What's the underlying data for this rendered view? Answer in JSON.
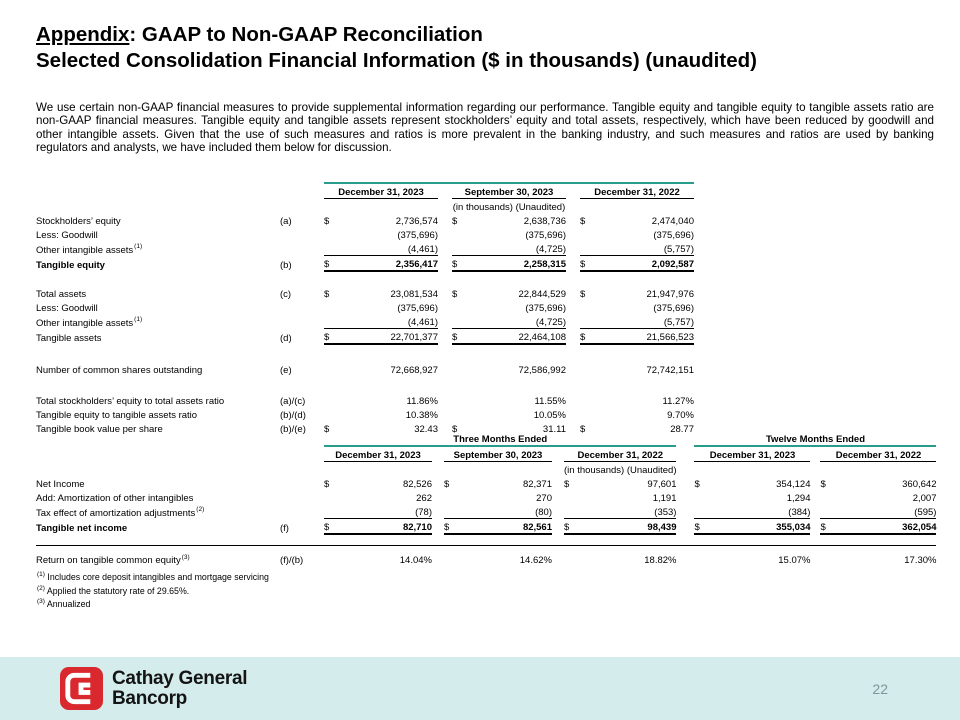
{
  "title": {
    "line1_prefix": "Appendix",
    "line1_rest": ": GAAP to Non-GAAP Reconciliation",
    "line2": "Selected Consolidation Financial Information ($ in thousands) (unaudited)"
  },
  "intro": "We use certain non-GAAP financial measures to provide supplemental information regarding our performance. Tangible equity and tangible equity to tangible assets ratio are non-GAAP financial measures. Tangible equity and tangible assets represent stockholders’ equity and total assets, respectively, which have been reduced by goodwill and other intangible assets. Given that the use of such measures and ratios is more prevalent in the banking industry, and such measures and ratios are used by banking regulators and analysts, we have included them below for discussion.",
  "table1": {
    "teal_top": true,
    "col_headers": [
      "December 31, 2023",
      "September 30, 2023",
      "December 31, 2022"
    ],
    "subheader": "(in thousands) (Unaudited)",
    "sub_group": 1,
    "rows": [
      {
        "label": "Stockholders’ equity",
        "ref": "(a)",
        "dollar": true,
        "values": [
          "2,736,574",
          "2,638,736",
          "2,474,040"
        ]
      },
      {
        "label": "Less: Goodwill",
        "values": [
          "(375,696)",
          "(375,696)",
          "(375,696)"
        ]
      },
      {
        "label": "Other intangible assets",
        "sup": "(1)",
        "underline": true,
        "values": [
          "(4,461)",
          "(4,725)",
          "(5,757)"
        ]
      },
      {
        "label": "Tangible equity",
        "ref": "(b)",
        "dollar": true,
        "bold": true,
        "total": true,
        "values": [
          "2,356,417",
          "2,258,315",
          "2,092,587"
        ]
      },
      {
        "spacer": true,
        "h": 14
      },
      {
        "label": "Total assets",
        "ref": "(c)",
        "dollar": true,
        "values": [
          "23,081,534",
          "22,844,529",
          "21,947,976"
        ]
      },
      {
        "label": "Less: Goodwill",
        "values": [
          "(375,696)",
          "(375,696)",
          "(375,696)"
        ]
      },
      {
        "label": "Other intangible assets",
        "sup": "(1)",
        "underline": true,
        "values": [
          "(4,461)",
          "(4,725)",
          "(5,757)"
        ]
      },
      {
        "label": "Tangible assets",
        "ref": "(d)",
        "dollar": true,
        "total": true,
        "values": [
          "22,701,377",
          "22,464,108",
          "21,566,523"
        ]
      },
      {
        "spacer": true,
        "h": 17
      },
      {
        "label": "Number of common shares outstanding",
        "ref": "(e)",
        "values": [
          "72,668,927",
          "72,586,992",
          "72,742,151"
        ]
      },
      {
        "spacer": true,
        "h": 17
      },
      {
        "label": "Total stockholders’ equity to total assets ratio",
        "ref": "(a)/(c)",
        "values": [
          "11.86%",
          "11.55%",
          "11.27%"
        ]
      },
      {
        "label": "Tangible equity to tangible assets ratio",
        "ref": "(b)/(d)",
        "values": [
          "10.38%",
          "10.05%",
          "9.70%"
        ]
      },
      {
        "label": "Tangible book value per share",
        "ref": "(b)/(e)",
        "dollar": true,
        "values": [
          "32.43",
          "31.11",
          "28.77"
        ]
      }
    ]
  },
  "table2": {
    "teal_top": false,
    "group_headers": [
      {
        "label": "Three Months Ended",
        "span": 3
      },
      {
        "label": "Twelve Months Ended",
        "span": 2
      }
    ],
    "col_headers": [
      "December 31, 2023",
      "September 30, 2023",
      "December 31, 2022",
      "December 31, 2023",
      "December 31, 2022"
    ],
    "subheader": "(in thousands) (Unaudited)",
    "sub_group": 2,
    "rows": [
      {
        "label": "Net Income",
        "dollar": true,
        "values": [
          "82,526",
          "82,371",
          "97,601",
          "354,124",
          "360,642"
        ]
      },
      {
        "label": "Add: Amortization of other intangibles",
        "values": [
          "262",
          "270",
          "1,191",
          "1,294",
          "2,007"
        ]
      },
      {
        "label": "Tax effect of amortization adjustments",
        "sup": "(2)",
        "underline": true,
        "values": [
          "(78)",
          "(80)",
          "(353)",
          "(384)",
          "(595)"
        ]
      },
      {
        "label": "Tangible net income",
        "ref": "(f)",
        "dollar": true,
        "bold": true,
        "total": true,
        "values": [
          "82,710",
          "82,561",
          "98,439",
          "355,034",
          "362,054"
        ]
      },
      {
        "spacer": true,
        "h": 8
      },
      {
        "rule": true
      },
      {
        "spacer": true,
        "h": 6
      },
      {
        "label": "Return on tangible common equity",
        "sup": "(3)",
        "ref": "(f)/(b)",
        "values": [
          "14.04%",
          "14.62%",
          "18.82%",
          "15.07%",
          "17.30%"
        ]
      }
    ]
  },
  "footnotes": [
    {
      "sup": "(1)",
      "text": "Includes core deposit intangibles and mortgage servicing"
    },
    {
      "sup": "(2)",
      "text": "Applied the statutory rate of 29.65%."
    },
    {
      "sup": "(3)",
      "text": "Annualized"
    }
  ],
  "footer": {
    "brand_line1": "Cathay General",
    "brand_line2": "Bancorp",
    "page_number": "22"
  },
  "colors": {
    "accent_teal": "#2a9c8c",
    "footer_bg": "#d5eced",
    "logo_red": "#d9292f",
    "page_number_gray": "#7d9799"
  }
}
